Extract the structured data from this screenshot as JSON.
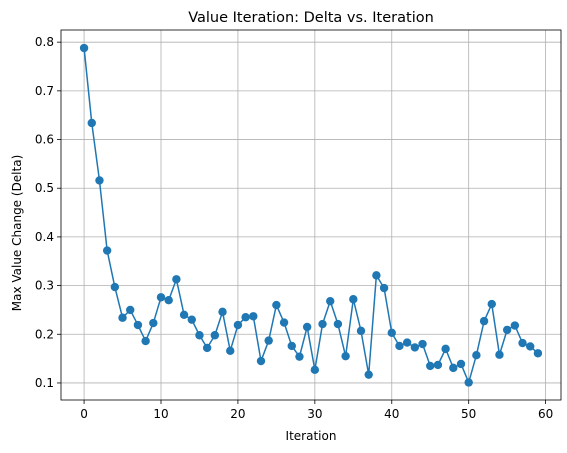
{
  "chart_data": {
    "type": "line",
    "title": "Value Iteration: Delta vs. Iteration",
    "xlabel": "Iteration",
    "ylabel": "Max Value Change (Delta)",
    "xlim": [
      -3,
      62
    ],
    "ylim": [
      0.065,
      0.825
    ],
    "xticks": [
      0,
      10,
      20,
      30,
      40,
      50,
      60
    ],
    "yticks": [
      0.1,
      0.2,
      0.3,
      0.4,
      0.5,
      0.6,
      0.7,
      0.8
    ],
    "grid": true,
    "color": "#1f77b4",
    "marker": "circle",
    "x": [
      0,
      1,
      2,
      3,
      4,
      5,
      6,
      7,
      8,
      9,
      10,
      11,
      12,
      13,
      14,
      15,
      16,
      17,
      18,
      19,
      20,
      21,
      22,
      23,
      24,
      25,
      26,
      27,
      28,
      29,
      30,
      31,
      32,
      33,
      34,
      35,
      36,
      37,
      38,
      39,
      40,
      41,
      42,
      43,
      44,
      45,
      46,
      47,
      48,
      49,
      50,
      51,
      52,
      53,
      54,
      55,
      56,
      57,
      58,
      59
    ],
    "y": [
      0.788,
      0.634,
      0.516,
      0.372,
      0.297,
      0.234,
      0.25,
      0.219,
      0.186,
      0.223,
      0.276,
      0.27,
      0.313,
      0.24,
      0.23,
      0.198,
      0.172,
      0.198,
      0.246,
      0.166,
      0.219,
      0.235,
      0.237,
      0.145,
      0.187,
      0.26,
      0.224,
      0.176,
      0.154,
      0.215,
      0.127,
      0.221,
      0.268,
      0.221,
      0.155,
      0.272,
      0.207,
      0.117,
      0.321,
      0.295,
      0.203,
      0.176,
      0.183,
      0.173,
      0.18,
      0.135,
      0.137,
      0.17,
      0.131,
      0.139,
      0.101,
      0.157,
      0.227,
      0.262,
      0.158,
      0.209,
      0.218,
      0.182,
      0.175,
      0.161
    ]
  }
}
